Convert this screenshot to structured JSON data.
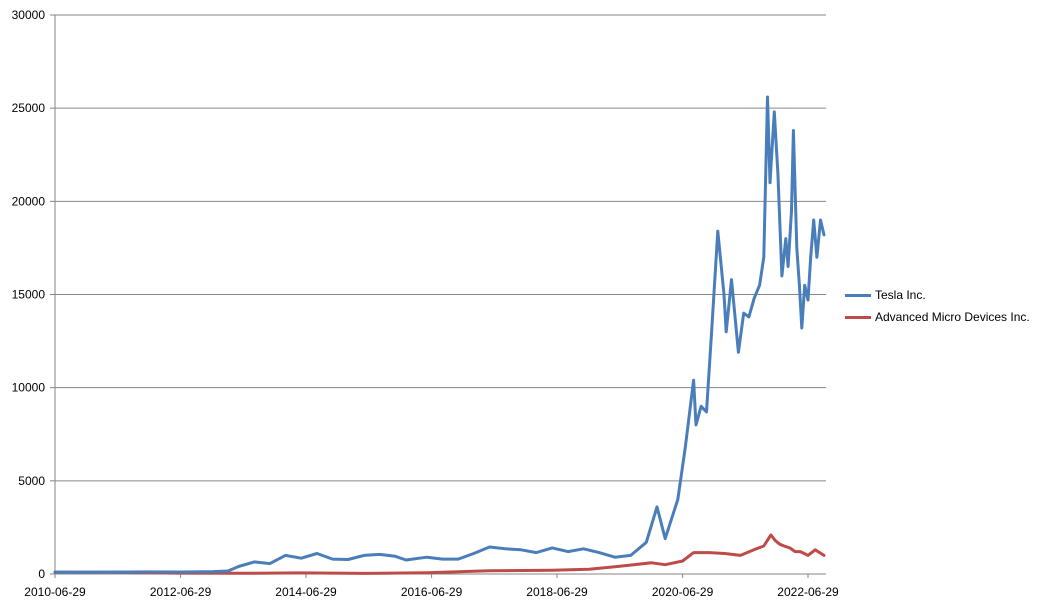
{
  "chart_data": {
    "type": "line",
    "title": "",
    "xlabel": "",
    "ylabel": "",
    "x_tick_labels": [
      "2010-06-29",
      "2012-06-29",
      "2014-06-29",
      "2016-06-29",
      "2018-06-29",
      "2020-06-29",
      "2022-06-29"
    ],
    "y_tick_labels": [
      "0",
      "5000",
      "10000",
      "15000",
      "20000",
      "25000",
      "30000"
    ],
    "ylim": [
      0,
      30000
    ],
    "xlim": [
      "2010-06-29",
      "2022-09-30"
    ],
    "grid": "horizontal",
    "legend_position": "right",
    "series": [
      {
        "name": "Tesla Inc.",
        "color": "#4a7ebb",
        "points": [
          [
            "2010-06-29",
            100
          ],
          [
            "2011-01-01",
            100
          ],
          [
            "2011-07-01",
            110
          ],
          [
            "2012-01-01",
            115
          ],
          [
            "2012-07-01",
            110
          ],
          [
            "2013-01-01",
            130
          ],
          [
            "2013-04-01",
            160
          ],
          [
            "2013-06-01",
            400
          ],
          [
            "2013-09-01",
            650
          ],
          [
            "2013-12-01",
            560
          ],
          [
            "2014-03-01",
            1000
          ],
          [
            "2014-06-01",
            850
          ],
          [
            "2014-09-01",
            1100
          ],
          [
            "2014-12-01",
            800
          ],
          [
            "2015-03-01",
            780
          ],
          [
            "2015-06-01",
            1000
          ],
          [
            "2015-09-01",
            1050
          ],
          [
            "2015-12-01",
            950
          ],
          [
            "2016-02-01",
            750
          ],
          [
            "2016-06-01",
            900
          ],
          [
            "2016-09-01",
            800
          ],
          [
            "2016-12-01",
            800
          ],
          [
            "2017-03-01",
            1100
          ],
          [
            "2017-06-01",
            1450
          ],
          [
            "2017-09-01",
            1350
          ],
          [
            "2017-12-01",
            1300
          ],
          [
            "2018-03-01",
            1150
          ],
          [
            "2018-06-01",
            1400
          ],
          [
            "2018-09-01",
            1200
          ],
          [
            "2018-12-01",
            1350
          ],
          [
            "2019-03-01",
            1150
          ],
          [
            "2019-06-01",
            900
          ],
          [
            "2019-09-01",
            1000
          ],
          [
            "2019-12-01",
            1700
          ],
          [
            "2020-02-01",
            3600
          ],
          [
            "2020-03-20",
            1900
          ],
          [
            "2020-06-01",
            4000
          ],
          [
            "2020-07-15",
            6800
          ],
          [
            "2020-09-01",
            10400
          ],
          [
            "2020-09-15",
            8000
          ],
          [
            "2020-10-15",
            9000
          ],
          [
            "2020-11-15",
            8700
          ],
          [
            "2020-12-15",
            13000
          ],
          [
            "2021-01-20",
            18400
          ],
          [
            "2021-02-25",
            15000
          ],
          [
            "2021-03-10",
            13000
          ],
          [
            "2021-04-10",
            15800
          ],
          [
            "2021-05-20",
            11900
          ],
          [
            "2021-06-20",
            14000
          ],
          [
            "2021-07-20",
            13800
          ],
          [
            "2021-08-20",
            14800
          ],
          [
            "2021-09-20",
            15500
          ],
          [
            "2021-10-15",
            17000
          ],
          [
            "2021-11-05",
            25600
          ],
          [
            "2021-11-20",
            21000
          ],
          [
            "2021-12-15",
            24800
          ],
          [
            "2022-01-05",
            21500
          ],
          [
            "2022-01-28",
            16000
          ],
          [
            "2022-02-20",
            18000
          ],
          [
            "2022-03-05",
            16500
          ],
          [
            "2022-03-25",
            19500
          ],
          [
            "2022-04-05",
            23800
          ],
          [
            "2022-04-25",
            17500
          ],
          [
            "2022-05-10",
            15500
          ],
          [
            "2022-05-24",
            13200
          ],
          [
            "2022-06-10",
            15500
          ],
          [
            "2022-06-29",
            14700
          ],
          [
            "2022-07-15",
            17000
          ],
          [
            "2022-08-01",
            19000
          ],
          [
            "2022-08-20",
            17000
          ],
          [
            "2022-09-10",
            19000
          ],
          [
            "2022-09-30",
            18200
          ]
        ]
      },
      {
        "name": "Advanced Micro Devices Inc.",
        "color": "#be4b48",
        "points": [
          [
            "2010-06-29",
            100
          ],
          [
            "2011-06-01",
            90
          ],
          [
            "2012-06-01",
            50
          ],
          [
            "2013-06-01",
            40
          ],
          [
            "2014-06-01",
            60
          ],
          [
            "2015-06-01",
            30
          ],
          [
            "2016-06-01",
            70
          ],
          [
            "2017-06-01",
            170
          ],
          [
            "2018-06-01",
            200
          ],
          [
            "2019-01-01",
            250
          ],
          [
            "2019-06-01",
            390
          ],
          [
            "2020-01-01",
            600
          ],
          [
            "2020-03-20",
            500
          ],
          [
            "2020-06-29",
            700
          ],
          [
            "2020-09-01",
            1150
          ],
          [
            "2020-12-01",
            1150
          ],
          [
            "2021-03-01",
            1100
          ],
          [
            "2021-06-01",
            1000
          ],
          [
            "2021-09-01",
            1350
          ],
          [
            "2021-10-15",
            1500
          ],
          [
            "2021-11-25",
            2100
          ],
          [
            "2021-12-20",
            1800
          ],
          [
            "2022-01-15",
            1600
          ],
          [
            "2022-02-10",
            1500
          ],
          [
            "2022-03-15",
            1400
          ],
          [
            "2022-04-15",
            1200
          ],
          [
            "2022-05-15",
            1200
          ],
          [
            "2022-06-29",
            1000
          ],
          [
            "2022-08-10",
            1300
          ],
          [
            "2022-09-30",
            1000
          ]
        ]
      }
    ]
  }
}
